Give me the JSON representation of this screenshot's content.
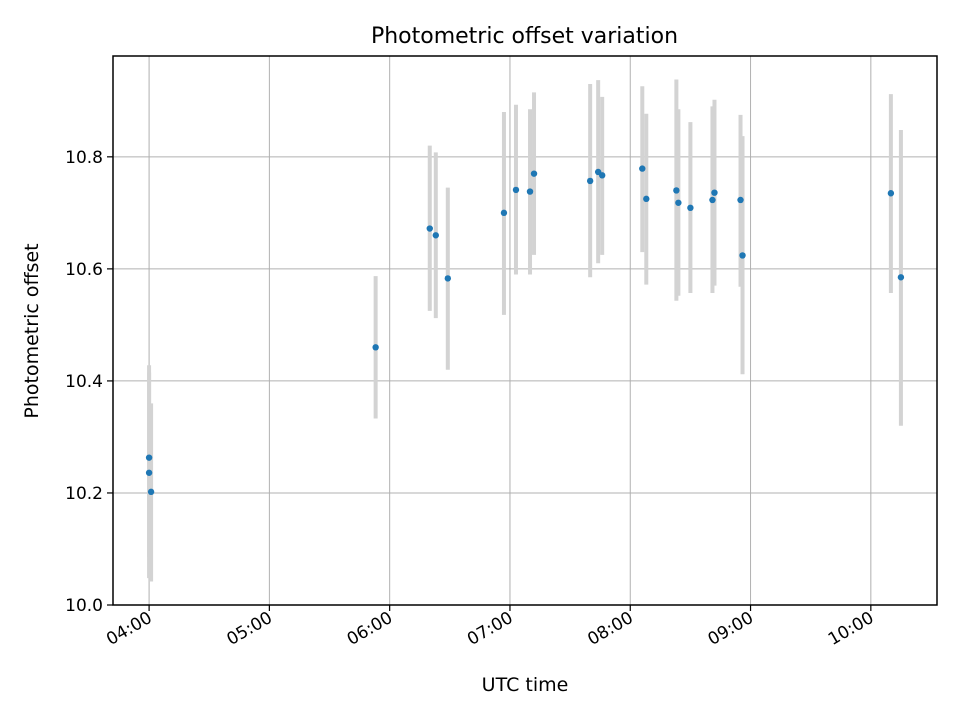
{
  "chart_data": {
    "type": "scatter",
    "title": "Photometric offset variation",
    "xlabel": "UTC time",
    "ylabel": "Photometric offset",
    "grid": true,
    "x_type": "time",
    "xlim": [
      "03:42",
      "10:33"
    ],
    "ylim": [
      10.0,
      10.98
    ],
    "x_ticks": [
      "04:00",
      "05:00",
      "06:00",
      "07:00",
      "08:00",
      "09:00",
      "10:00"
    ],
    "y_ticks": [
      "10.0",
      "10.2",
      "10.4",
      "10.6",
      "10.8"
    ],
    "marker_color": "#1f77b4",
    "errorbar_color": "#d3d3d3",
    "points": [
      {
        "x": "04:00",
        "y": 10.263,
        "err_low": 10.085,
        "err_high": 10.428
      },
      {
        "x": "04:00",
        "y": 10.236,
        "err_low": 10.048,
        "err_high": 10.415
      },
      {
        "x": "04:01",
        "y": 10.202,
        "err_low": 10.042,
        "err_high": 10.36
      },
      {
        "x": "05:53",
        "y": 10.46,
        "err_low": 10.333,
        "err_high": 10.587
      },
      {
        "x": "06:20",
        "y": 10.672,
        "err_low": 10.525,
        "err_high": 10.82
      },
      {
        "x": "06:23",
        "y": 10.66,
        "err_low": 10.512,
        "err_high": 10.808
      },
      {
        "x": "06:29",
        "y": 10.583,
        "err_low": 10.42,
        "err_high": 10.745
      },
      {
        "x": "06:57",
        "y": 10.7,
        "err_low": 10.518,
        "err_high": 10.88
      },
      {
        "x": "07:03",
        "y": 10.741,
        "err_low": 10.59,
        "err_high": 10.893
      },
      {
        "x": "07:10",
        "y": 10.738,
        "err_low": 10.59,
        "err_high": 10.885
      },
      {
        "x": "07:12",
        "y": 10.77,
        "err_low": 10.625,
        "err_high": 10.915
      },
      {
        "x": "07:40",
        "y": 10.757,
        "err_low": 10.585,
        "err_high": 10.93
      },
      {
        "x": "07:44",
        "y": 10.773,
        "err_low": 10.61,
        "err_high": 10.937
      },
      {
        "x": "07:46",
        "y": 10.767,
        "err_low": 10.625,
        "err_high": 10.907
      },
      {
        "x": "08:06",
        "y": 10.779,
        "err_low": 10.63,
        "err_high": 10.926
      },
      {
        "x": "08:08",
        "y": 10.725,
        "err_low": 10.572,
        "err_high": 10.877
      },
      {
        "x": "08:23",
        "y": 10.74,
        "err_low": 10.543,
        "err_high": 10.938
      },
      {
        "x": "08:24",
        "y": 10.718,
        "err_low": 10.552,
        "err_high": 10.885
      },
      {
        "x": "08:30",
        "y": 10.709,
        "err_low": 10.557,
        "err_high": 10.862
      },
      {
        "x": "08:41",
        "y": 10.723,
        "err_low": 10.557,
        "err_high": 10.89
      },
      {
        "x": "08:42",
        "y": 10.736,
        "err_low": 10.57,
        "err_high": 10.902
      },
      {
        "x": "08:55",
        "y": 10.723,
        "err_low": 10.568,
        "err_high": 10.875
      },
      {
        "x": "08:56",
        "y": 10.624,
        "err_low": 10.412,
        "err_high": 10.837
      },
      {
        "x": "10:10",
        "y": 10.735,
        "err_low": 10.557,
        "err_high": 10.912
      },
      {
        "x": "10:15",
        "y": 10.585,
        "err_low": 10.32,
        "err_high": 10.848
      }
    ]
  }
}
